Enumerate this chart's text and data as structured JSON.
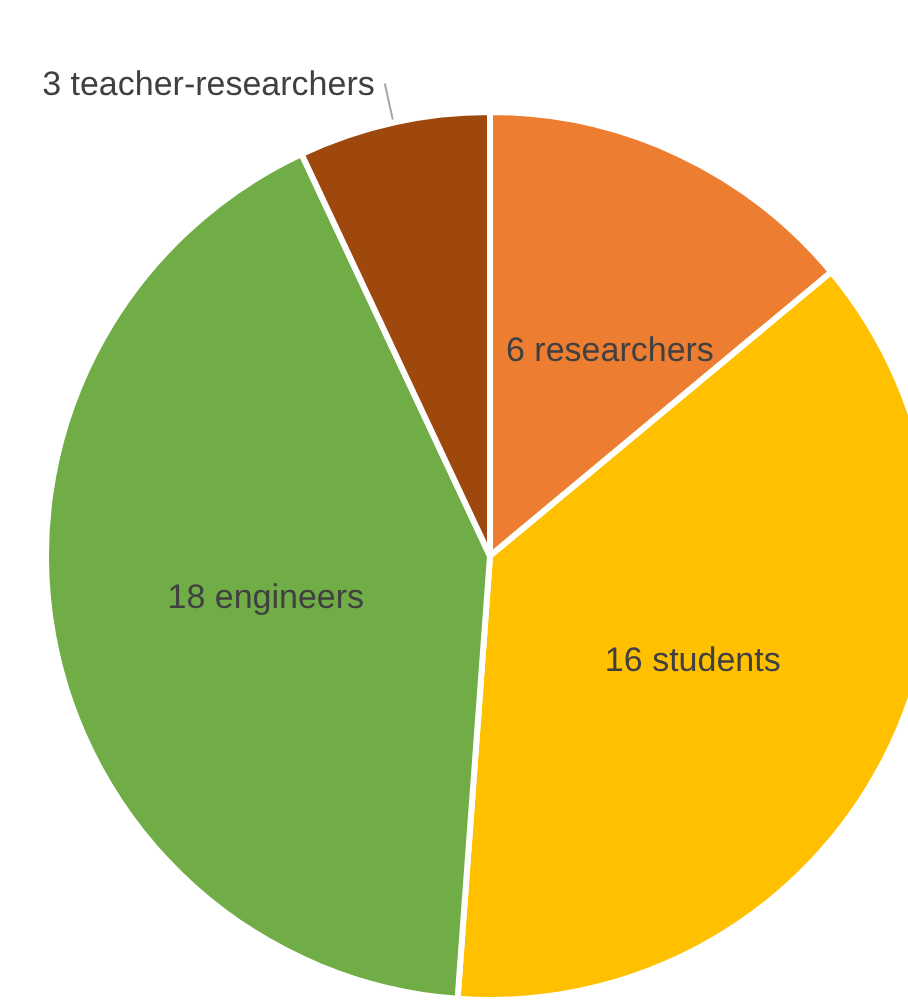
{
  "chart_data": {
    "type": "pie",
    "categories": [
      null,
      null,
      null,
      null
    ],
    "values": [
      6,
      16,
      18,
      3
    ],
    "value_labels": [
      "6 researchers",
      "16 students",
      "18 engineers",
      "3 teacher-researchers"
    ],
    "colors": [
      "#ed7d31",
      "#ffc000",
      "#70ad47",
      "#9e480e"
    ]
  }
}
